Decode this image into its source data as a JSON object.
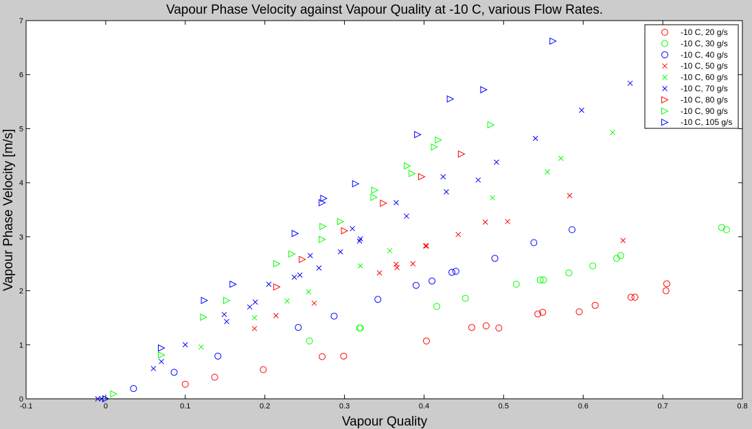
{
  "chart_data": {
    "type": "scatter",
    "title": "Vapour Phase Velocity against Vapour Quality at -10 C, various Flow Rates.",
    "xlabel": "Vapour Quality",
    "ylabel": "Vapour Phase Velocity [m/s]",
    "xlim": [
      -0.1,
      0.8
    ],
    "ylim": [
      0,
      7
    ],
    "xticks": [
      -0.1,
      0,
      0.1,
      0.2,
      0.3,
      0.4,
      0.5,
      0.6,
      0.7,
      0.8
    ],
    "xtick_labels": [
      "-0.1",
      "0",
      "0.1",
      "0.2",
      "0.3",
      "0.4",
      "0.5",
      "0.6",
      "0.7",
      "0.8"
    ],
    "yticks": [
      0,
      1,
      2,
      3,
      4,
      5,
      6,
      7
    ],
    "ytick_labels": [
      "0",
      "1",
      "2",
      "3",
      "4",
      "5",
      "6",
      "7"
    ],
    "grid": false,
    "legend_position": "top-right",
    "series": [
      {
        "name": "-10 C, 20 g/s",
        "marker": "circle",
        "color": "#ff0000",
        "x": [
          0.1,
          0.137,
          0.198,
          0.272,
          0.299,
          0.403,
          0.46,
          0.478,
          0.494,
          0.543,
          0.549,
          0.595,
          0.615,
          0.66,
          0.665,
          0.704,
          0.705
        ],
        "y": [
          0.27,
          0.4,
          0.54,
          0.78,
          0.79,
          1.07,
          1.32,
          1.35,
          1.31,
          1.57,
          1.6,
          1.61,
          1.73,
          1.88,
          1.88,
          2.0,
          2.13
        ]
      },
      {
        "name": "-10 C, 30 g/s",
        "marker": "circle",
        "color": "#00ff00",
        "x": [
          0.256,
          0.319,
          0.32,
          0.416,
          0.452,
          0.516,
          0.546,
          0.55,
          0.582,
          0.612,
          0.642,
          0.647,
          0.774,
          0.78
        ],
        "y": [
          1.07,
          1.31,
          1.31,
          1.71,
          1.86,
          2.12,
          2.2,
          2.2,
          2.33,
          2.46,
          2.6,
          2.65,
          3.17,
          3.13
        ]
      },
      {
        "name": "-10 C, 40 g/s",
        "marker": "circle",
        "color": "#0000ff",
        "x": [
          0.035,
          0.086,
          0.141,
          0.242,
          0.287,
          0.342,
          0.39,
          0.41,
          0.435,
          0.44,
          0.489,
          0.538,
          0.586
        ],
        "y": [
          0.19,
          0.49,
          0.79,
          1.32,
          1.53,
          1.84,
          2.1,
          2.18,
          2.34,
          2.36,
          2.6,
          2.89,
          3.13
        ]
      },
      {
        "name": "-10 C, 50 g/s",
        "marker": "x",
        "color": "#ff0000",
        "x": [
          0.187,
          0.214,
          0.262,
          0.344,
          0.365,
          0.366,
          0.386,
          0.402,
          0.403,
          0.443,
          0.477,
          0.505,
          0.583,
          0.65
        ],
        "y": [
          1.3,
          1.54,
          1.77,
          2.33,
          2.49,
          2.43,
          2.5,
          2.83,
          2.83,
          3.04,
          3.27,
          3.28,
          3.76,
          2.93
        ]
      },
      {
        "name": "-10 C, 60 g/s",
        "marker": "x",
        "color": "#00ff00",
        "x": [
          0.12,
          0.187,
          0.228,
          0.255,
          0.32,
          0.357,
          0.486,
          0.555,
          0.572,
          0.637
        ],
        "y": [
          0.96,
          1.5,
          1.81,
          1.98,
          2.46,
          2.74,
          3.72,
          4.2,
          4.45,
          4.93
        ]
      },
      {
        "name": "-10 C, 70 g/s",
        "marker": "x",
        "color": "#0000ff",
        "x": [
          -0.01,
          -0.005,
          0.06,
          0.07,
          0.1,
          0.149,
          0.152,
          0.181,
          0.188,
          0.205,
          0.237,
          0.244,
          0.257,
          0.268,
          0.295,
          0.31,
          0.319,
          0.32,
          0.365,
          0.378,
          0.424,
          0.428,
          0.468,
          0.491,
          0.54,
          0.598,
          0.659
        ],
        "y": [
          0.0,
          0.0,
          0.56,
          0.69,
          1.0,
          1.56,
          1.43,
          1.7,
          1.79,
          2.12,
          2.25,
          2.29,
          2.65,
          2.42,
          2.72,
          3.15,
          2.92,
          2.96,
          3.63,
          3.38,
          4.11,
          3.83,
          4.05,
          4.38,
          4.82,
          5.34,
          5.84
        ]
      },
      {
        "name": "-10 C, 80 g/s",
        "marker": "triangle-right",
        "color": "#ff0000",
        "x": [
          0.215,
          0.247,
          0.3,
          0.349,
          0.397,
          0.447
        ],
        "y": [
          2.07,
          2.58,
          3.11,
          3.62,
          4.11,
          4.53
        ]
      },
      {
        "name": "-10 C, 90 g/s",
        "marker": "triangle-right",
        "color": "#00ff00",
        "x": [
          0.01,
          0.07,
          0.123,
          0.152,
          0.215,
          0.234,
          0.272,
          0.273,
          0.295,
          0.337,
          0.338,
          0.379,
          0.385,
          0.413,
          0.418,
          0.484
        ],
        "y": [
          0.09,
          0.81,
          1.51,
          1.82,
          2.5,
          2.68,
          2.95,
          3.19,
          3.28,
          3.73,
          3.86,
          4.31,
          4.17,
          4.66,
          4.79,
          5.07
        ]
      },
      {
        "name": "-10 C, 105 g/s",
        "marker": "triangle-right",
        "color": "#0000ff",
        "x": [
          0.0,
          0.07,
          0.124,
          0.16,
          0.238,
          0.272,
          0.274,
          0.314,
          0.392,
          0.433,
          0.475,
          0.562
        ],
        "y": [
          0.0,
          0.94,
          1.82,
          2.12,
          3.06,
          3.63,
          3.71,
          3.98,
          4.89,
          5.55,
          5.72,
          6.62
        ]
      }
    ]
  }
}
